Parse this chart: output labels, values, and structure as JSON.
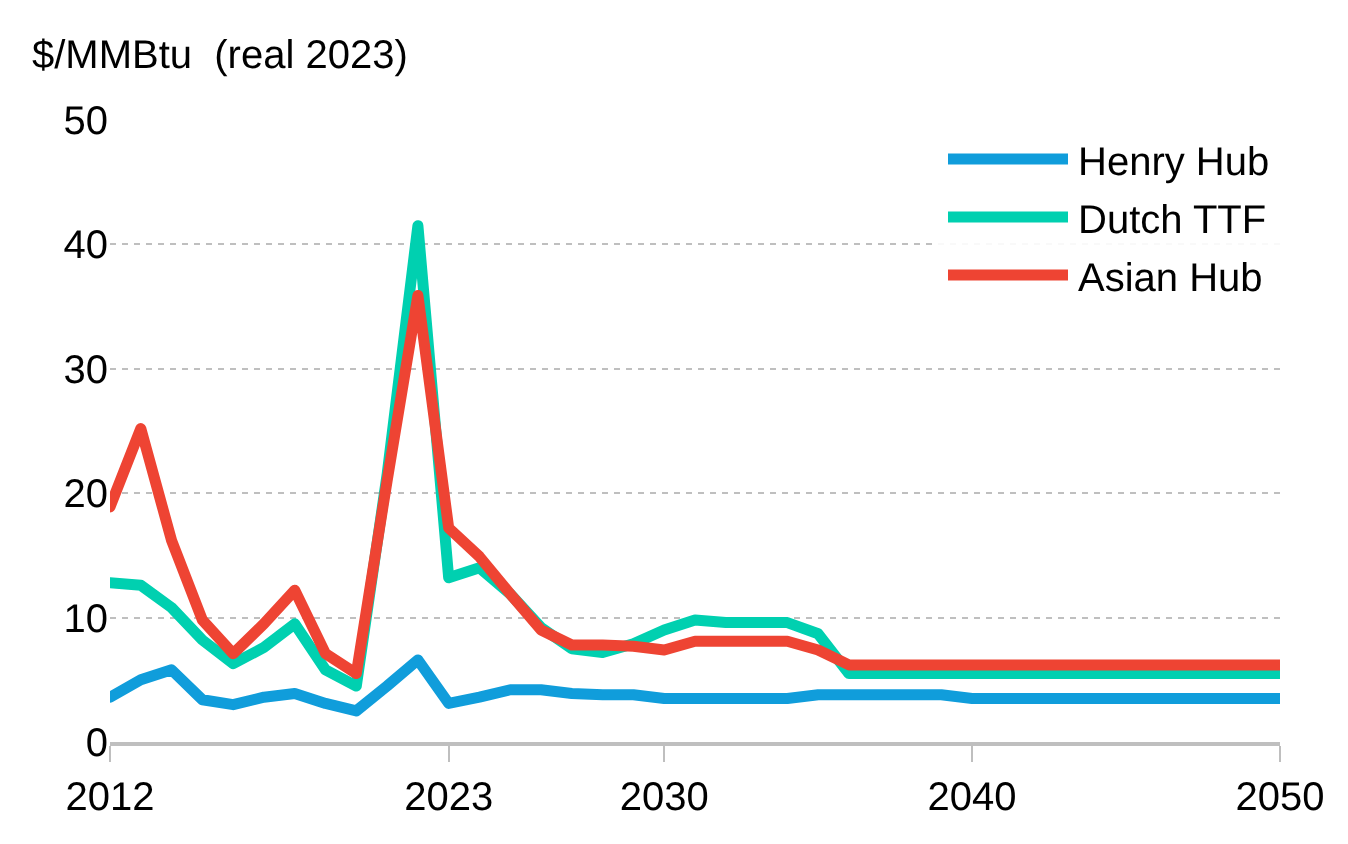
{
  "chart_data": {
    "type": "line",
    "ylabel": "$/MMBtu  (real 2023)",
    "x": [
      2012,
      2013,
      2014,
      2015,
      2016,
      2017,
      2018,
      2019,
      2020,
      2021,
      2022,
      2023,
      2024,
      2025,
      2026,
      2027,
      2028,
      2029,
      2030,
      2031,
      2032,
      2033,
      2034,
      2035,
      2036,
      2037,
      2038,
      2039,
      2040,
      2041,
      2042,
      2043,
      2044,
      2045,
      2046,
      2047,
      2048,
      2049,
      2050
    ],
    "series": [
      {
        "name": "Henry Hub",
        "color": "#109ddb",
        "values": [
          3.6,
          5,
          5.8,
          3.4,
          3,
          3.6,
          3.9,
          3.1,
          2.5,
          4.5,
          6.6,
          3.1,
          3.6,
          4.2,
          4.2,
          3.9,
          3.8,
          3.8,
          3.5,
          3.5,
          3.5,
          3.5,
          3.5,
          3.8,
          3.8,
          3.8,
          3.8,
          3.8,
          3.5,
          3.5,
          3.5,
          3.5,
          3.5,
          3.5,
          3.5,
          3.5,
          3.5,
          3.5,
          3.5
        ]
      },
      {
        "name": "Dutch TTF",
        "color": "#00d0b0",
        "values": [
          12.8,
          12.6,
          10.8,
          8.2,
          6.3,
          7.6,
          9.5,
          5.8,
          4.5,
          21.5,
          41.5,
          13.2,
          14,
          11.9,
          9.2,
          7.5,
          7.2,
          7.9,
          9,
          9.8,
          9.6,
          9.6,
          9.6,
          8.7,
          5.5,
          5.5,
          5.5,
          5.5,
          5.5,
          5.5,
          5.5,
          5.5,
          5.5,
          5.5,
          5.5,
          5.5,
          5.5,
          5.5,
          5.5
        ]
      },
      {
        "name": "Asian Hub",
        "color": "#ee4433",
        "values": [
          18.9,
          25.2,
          16.2,
          9.8,
          7.1,
          9.5,
          12.2,
          7.1,
          5.5,
          21,
          35.9,
          17.2,
          14.9,
          11.9,
          9,
          7.8,
          7.8,
          7.7,
          7.4,
          8.1,
          8.1,
          8.1,
          8.1,
          7.4,
          6.2,
          6.2,
          6.2,
          6.2,
          6.2,
          6.2,
          6.2,
          6.2,
          6.2,
          6.2,
          6.2,
          6.2,
          6.2,
          6.2,
          6.2
        ]
      }
    ],
    "xlim": [
      2012,
      2050
    ],
    "xticks": [
      2012,
      2023,
      2030,
      2040,
      2050
    ],
    "ylim": [
      0,
      50
    ],
    "yticks": [
      0,
      10,
      20,
      30,
      40,
      50
    ],
    "grid": "y",
    "legend": "top right",
    "marker": "none",
    "line_style": "solid"
  }
}
